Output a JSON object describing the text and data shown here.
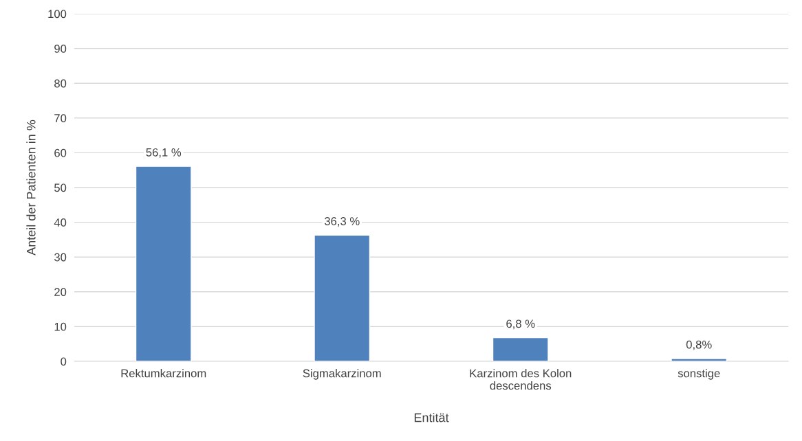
{
  "chart_data": {
    "type": "bar",
    "xlabel": "Entität",
    "ylabel": "Anteil der Patienten in %",
    "categories": [
      "Rektumkarzinom",
      "Sigmakarzinom",
      "Karzinom des Kolon\ndescendens",
      "sonstige"
    ],
    "values": [
      56.1,
      36.3,
      6.8,
      0.8
    ],
    "color": "#4f81bd",
    "value_labels": [
      "56,1 %",
      "36,3 %",
      "6,8 %",
      "0,8%"
    ],
    "ylim": [
      0,
      100
    ],
    "yticks": [
      0,
      10,
      20,
      30,
      40,
      50,
      60,
      70,
      80,
      90,
      100
    ],
    "grid": "y"
  }
}
